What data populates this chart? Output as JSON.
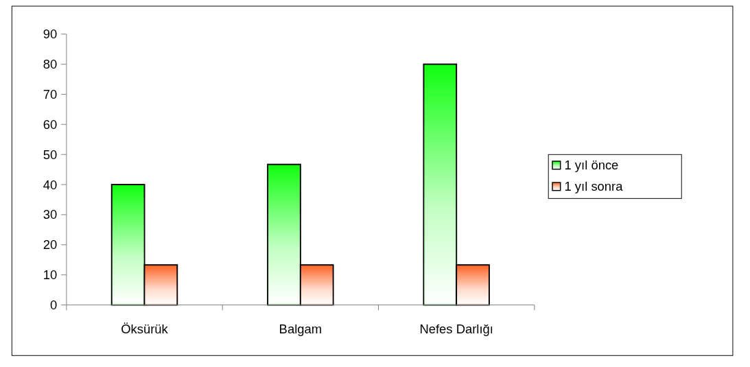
{
  "chart_data": {
    "type": "bar",
    "categories": [
      "Öksürük",
      "Balgam",
      "Nefes Darlığı"
    ],
    "series": [
      {
        "name": "1 yıl önce",
        "color": "#11ff11",
        "values": [
          40,
          46.7,
          80
        ]
      },
      {
        "name": "1 yıl sonra",
        "color": "#ff6628",
        "values": [
          13.3,
          13.3,
          13.3
        ]
      }
    ],
    "ylim": [
      0,
      90
    ],
    "yticks": [
      0,
      10,
      20,
      30,
      40,
      50,
      60,
      70,
      80,
      90
    ],
    "grid": false,
    "legend": "right"
  }
}
